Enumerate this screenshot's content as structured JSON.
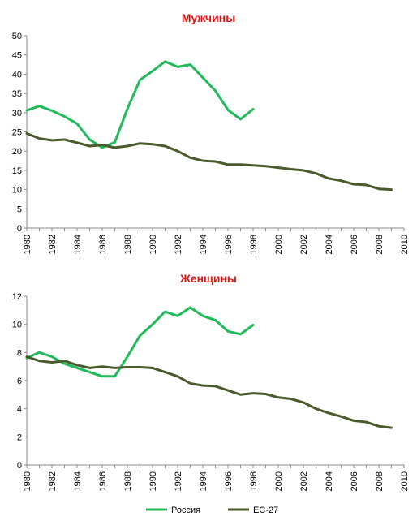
{
  "colors": {
    "russia": "#1fba5a",
    "eu27": "#4a5a2a",
    "title": "#e0120f",
    "axis": "#8a8a8a",
    "grid": "#d9d9d9"
  },
  "legend": {
    "position": "bottom",
    "items": [
      "Россия",
      "ЕС-27"
    ]
  },
  "chart_data": [
    {
      "type": "line",
      "title": "Мужчины",
      "xlabel": "",
      "ylabel": "",
      "xlim": [
        1980,
        2010
      ],
      "ylim": [
        0,
        50
      ],
      "y_ticks": [
        0,
        5,
        10,
        15,
        20,
        25,
        30,
        35,
        40,
        45,
        50
      ],
      "x_tick_labels": [
        "1980",
        "1982",
        "1984",
        "1986",
        "1988",
        "1990",
        "1992",
        "1994",
        "1996",
        "1998",
        "2000",
        "2002",
        "2004",
        "2006",
        "2008",
        "2010"
      ],
      "grid": false,
      "series": [
        {
          "name": "Россия",
          "x": [
            1980,
            1981,
            1982,
            1983,
            1984,
            1985,
            1986,
            1987,
            1988,
            1989,
            1990,
            1991,
            1992,
            1993,
            1994,
            1995,
            1996,
            1997,
            1998
          ],
          "values": [
            30.6,
            31.7,
            30.5,
            29.0,
            27.1,
            23.0,
            20.9,
            22.3,
            31.0,
            38.5,
            40.8,
            43.3,
            41.9,
            42.5,
            39.1,
            35.7,
            30.7,
            28.3,
            30.9
          ]
        },
        {
          "name": "ЕС-27",
          "x": [
            1980,
            1981,
            1982,
            1983,
            1984,
            1985,
            1986,
            1987,
            1988,
            1989,
            1990,
            1991,
            1992,
            1993,
            1994,
            1995,
            1996,
            1997,
            1998,
            1999,
            2000,
            2001,
            2002,
            2003,
            2004,
            2005,
            2006,
            2007,
            2008,
            2009
          ],
          "values": [
            24.6,
            23.3,
            22.8,
            23.0,
            22.2,
            21.3,
            21.6,
            20.9,
            21.3,
            22.0,
            21.8,
            21.3,
            20.0,
            18.3,
            17.5,
            17.3,
            16.5,
            16.5,
            16.3,
            16.1,
            15.7,
            15.3,
            15.0,
            14.2,
            12.9,
            12.3,
            11.4,
            11.2,
            10.2,
            10.0
          ]
        }
      ]
    },
    {
      "type": "line",
      "title": "Женщины",
      "xlabel": "",
      "ylabel": "",
      "xlim": [
        1980,
        2010
      ],
      "ylim": [
        0,
        12
      ],
      "y_ticks": [
        0,
        2,
        4,
        6,
        8,
        10,
        12
      ],
      "x_tick_labels": [
        "1980",
        "1982",
        "1984",
        "1986",
        "1988",
        "1990",
        "1992",
        "1994",
        "1996",
        "1998",
        "2000",
        "2002",
        "2004",
        "2006",
        "2008",
        "2010"
      ],
      "grid": false,
      "series": [
        {
          "name": "Россия",
          "x": [
            1980,
            1981,
            1982,
            1983,
            1984,
            1985,
            1986,
            1987,
            1988,
            1989,
            1990,
            1991,
            1992,
            1993,
            1994,
            1995,
            1996,
            1997,
            1998
          ],
          "values": [
            7.6,
            8.0,
            7.7,
            7.2,
            6.9,
            6.6,
            6.3,
            6.3,
            7.7,
            9.2,
            10.0,
            10.9,
            10.6,
            11.2,
            10.6,
            10.3,
            9.5,
            9.3,
            9.95
          ]
        },
        {
          "name": "ЕС-27",
          "x": [
            1980,
            1981,
            1982,
            1983,
            1984,
            1985,
            1986,
            1987,
            1988,
            1989,
            1990,
            1991,
            1992,
            1993,
            1994,
            1995,
            1996,
            1997,
            1998,
            1999,
            2000,
            2001,
            2002,
            2003,
            2004,
            2005,
            2006,
            2007,
            2008,
            2009
          ],
          "values": [
            7.7,
            7.4,
            7.3,
            7.4,
            7.1,
            6.9,
            7.0,
            6.9,
            6.95,
            6.95,
            6.9,
            6.6,
            6.3,
            5.8,
            5.65,
            5.6,
            5.3,
            5.0,
            5.1,
            5.05,
            4.8,
            4.7,
            4.45,
            4.0,
            3.7,
            3.45,
            3.15,
            3.05,
            2.75,
            2.65
          ]
        }
      ]
    }
  ]
}
